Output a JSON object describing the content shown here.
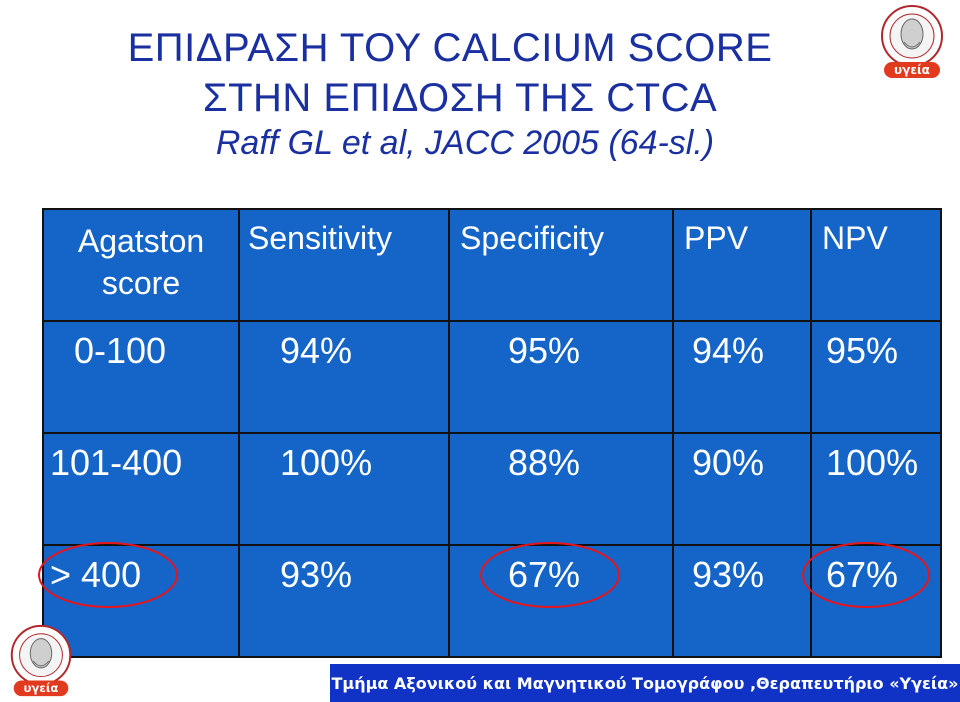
{
  "title": {
    "line1": "ΕΠΙΔΡΑΣΗ ΤΟΥ CALCIUM SCORE",
    "line2": "ΣΤΗΝ ΕΠΙΔΟΣΗ ΤΗΣ CTCA",
    "citation": "Raff GL et al, JACC 2005 (64-sl.)"
  },
  "logo": {
    "label": "υγεία"
  },
  "table": {
    "headers": {
      "agatston": "Agatston score",
      "sensitivity": "Sensitivity",
      "specificity": "Specificity",
      "ppv": "PPV",
      "npv": "NPV"
    },
    "rows": [
      {
        "score": "0-100",
        "sensitivity": "94%",
        "specificity": "95%",
        "ppv": "94%",
        "npv": "95%"
      },
      {
        "score": "101-400",
        "sensitivity": "100%",
        "specificity": "88%",
        "ppv": "90%",
        "npv": "100%"
      },
      {
        "score": "> 400",
        "sensitivity": "93%",
        "specificity": "67%",
        "ppv": "93%",
        "npv": "67%"
      }
    ],
    "highlight_color": "#e8141c"
  },
  "footer": {
    "text": "Τμήμα Αξονικού και Μαγνητικού Τομογράφου ,Θεραπευτήριο «Υγεία»"
  },
  "colors": {
    "title": "#1a2fa0",
    "table_bg": "#1565c8",
    "footer_bg": "#1033c6"
  }
}
